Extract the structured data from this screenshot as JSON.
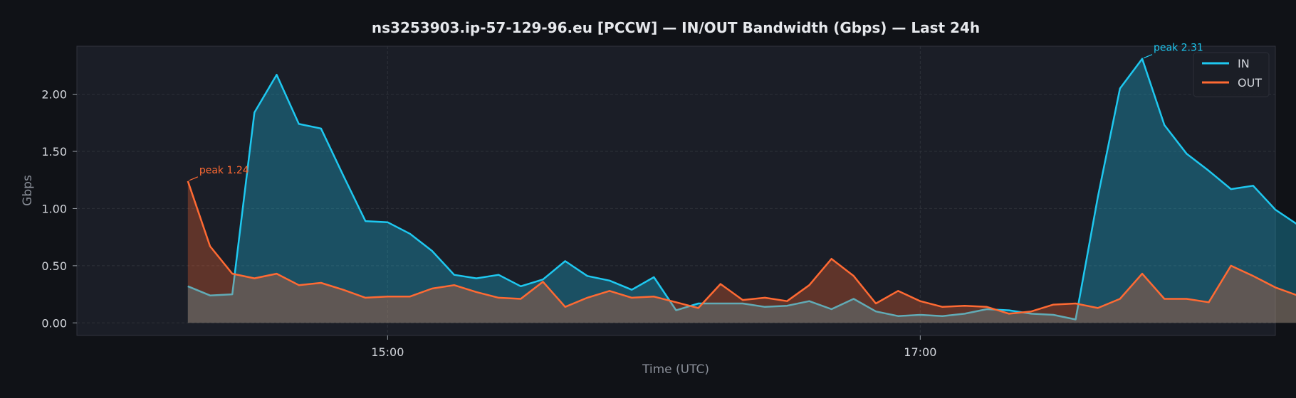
{
  "chart_data": {
    "type": "area",
    "title": "ns3253903.ip-57-129-96.eu [PCCW] — IN/OUT Bandwidth (Gbps) — Last 24h",
    "xlabel": "Time (UTC)",
    "ylabel": "Gbps",
    "x_start": "14:15",
    "x_step_minutes": 5,
    "xlim": [
      "13:50",
      "18:20"
    ],
    "ylim": [
      -0.11,
      2.42
    ],
    "x_ticks": [
      {
        "label": "15:00",
        "value": "15:00"
      },
      {
        "label": "17:00",
        "value": "17:00"
      }
    ],
    "y_ticks": [
      {
        "label": "0.00",
        "value": 0
      },
      {
        "label": "0.50",
        "value": 0.5
      },
      {
        "label": "1.00",
        "value": 1.0
      },
      {
        "label": "1.50",
        "value": 1.5
      },
      {
        "label": "2.00",
        "value": 2.0
      }
    ],
    "grid": true,
    "legend_position": "top-right",
    "series": [
      {
        "name": "IN",
        "color": "#1ec8f0",
        "values": [
          0.32,
          0.24,
          0.25,
          1.84,
          2.17,
          1.74,
          1.7,
          1.29,
          0.89,
          0.88,
          0.78,
          0.63,
          0.42,
          0.39,
          0.42,
          0.32,
          0.38,
          0.54,
          0.41,
          0.37,
          0.29,
          0.4,
          0.11,
          0.17,
          0.17,
          0.17,
          0.14,
          0.15,
          0.19,
          0.12,
          0.21,
          0.1,
          0.06,
          0.07,
          0.06,
          0.08,
          0.12,
          0.11,
          0.08,
          0.07,
          0.03,
          1.1,
          2.05,
          2.31,
          1.73,
          1.48,
          1.33,
          1.17,
          1.2,
          0.99,
          0.86,
          0.83
        ]
      },
      {
        "name": "OUT",
        "color": "#ff6a33",
        "values": [
          1.24,
          0.67,
          0.43,
          0.39,
          0.43,
          0.33,
          0.35,
          0.29,
          0.22,
          0.23,
          0.23,
          0.3,
          0.33,
          0.27,
          0.22,
          0.21,
          0.36,
          0.14,
          0.22,
          0.28,
          0.22,
          0.23,
          0.18,
          0.13,
          0.34,
          0.2,
          0.22,
          0.19,
          0.33,
          0.56,
          0.41,
          0.17,
          0.28,
          0.19,
          0.14,
          0.15,
          0.14,
          0.08,
          0.1,
          0.16,
          0.17,
          0.13,
          0.21,
          0.43,
          0.21,
          0.21,
          0.18,
          0.5,
          0.41,
          0.31,
          0.24,
          0.26
        ]
      }
    ],
    "annotations": [
      {
        "series": "OUT",
        "index": 0,
        "text": "peak 1.24"
      },
      {
        "series": "IN",
        "index": 43,
        "text": "peak 2.31"
      }
    ]
  }
}
